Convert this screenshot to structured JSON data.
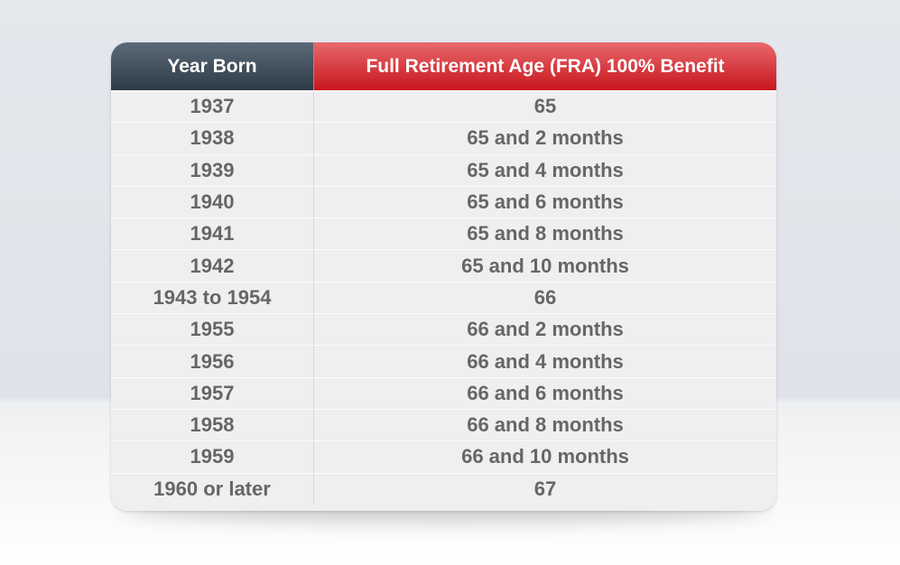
{
  "table": {
    "headers": [
      "Year Born",
      "Full Retirement Age (FRA) 100% Benefit"
    ],
    "rows": [
      [
        "1937",
        "65"
      ],
      [
        "1938",
        "65 and 2 months"
      ],
      [
        "1939",
        "65 and 4 months"
      ],
      [
        "1940",
        "65 and 6 months"
      ],
      [
        "1941",
        "65 and 8 months"
      ],
      [
        "1942",
        "65 and 10 months"
      ],
      [
        "1943 to 1954",
        "66"
      ],
      [
        "1955",
        "66 and 2 months"
      ],
      [
        "1956",
        "66 and 4 months"
      ],
      [
        "1957",
        "66 and 6 months"
      ],
      [
        "1958",
        "66 and 8 months"
      ],
      [
        "1959",
        "66 and 10 months"
      ],
      [
        "1960 or later",
        "67"
      ]
    ]
  }
}
